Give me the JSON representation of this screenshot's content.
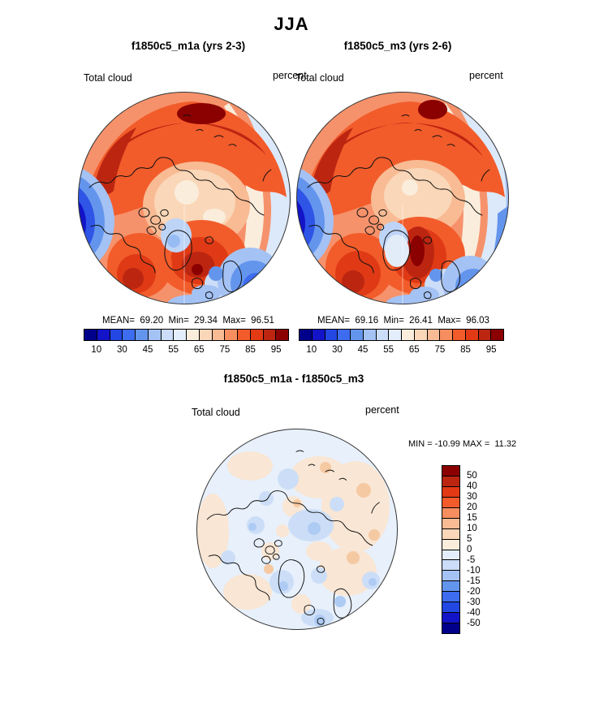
{
  "page": {
    "background": "#FFFFFF",
    "season_title": "JJA"
  },
  "panels": {
    "left": {
      "subtitle": "f1850c5_m1a (yrs 2-3)",
      "variable_label": "Total cloud",
      "units_label": "percent",
      "stats": "MEAN=  69.20  Min=  29.34  Max=  96.51"
    },
    "right": {
      "subtitle": "f1850c5_m3 (yrs 2-6)",
      "variable_label": "Total cloud",
      "units_label": "percent",
      "stats": "MEAN=  69.16  Min=  26.41  Max=  96.03"
    },
    "diff": {
      "title": "f1850c5_m1a - f1850c5_m3",
      "variable_label": "Total cloud",
      "units_label": "percent",
      "minmax": "MIN = -10.99 MAX =  11.32"
    }
  },
  "top_colorbar": {
    "tick_labels": [
      "10",
      "30",
      "45",
      "55",
      "65",
      "75",
      "85",
      "95"
    ]
  },
  "diff_colorbar": {
    "tick_labels": [
      "50",
      "40",
      "30",
      "20",
      "15",
      "10",
      "5",
      "0",
      "-5",
      "-10",
      "-15",
      "-20",
      "-30",
      "-40",
      "-50"
    ]
  },
  "palette": {
    "percent_colors": [
      "#00008B",
      "#1313C8",
      "#2247E2",
      "#3E6CEF",
      "#6495ED",
      "#A4C2F4",
      "#CBDDF8",
      "#E4EEFB",
      "#FAEDDC",
      "#FAD7B8",
      "#F8BB94",
      "#F68E60",
      "#F35B2B",
      "#E23A14",
      "#BC2611",
      "#8B0000"
    ],
    "diff_colors": [
      "#8B0000",
      "#BC2611",
      "#E23A14",
      "#F35B2B",
      "#F68E60",
      "#F8BB94",
      "#FAD7B8",
      "#FAEDDC",
      "#E4EEFB",
      "#CBDDF8",
      "#A4C2F4",
      "#6495ED",
      "#3E6CEF",
      "#2247E2",
      "#1313C8",
      "#00008B"
    ]
  },
  "chart_data": [
    {
      "type": "heatmap",
      "subtype": "north-polar-stereographic-contour-map",
      "season": "JJA",
      "title": "f1850c5_m1a (yrs 2-3)",
      "variable": "Total cloud",
      "units": "percent",
      "stats": {
        "mean": 69.2,
        "min": 29.34,
        "max": 96.51
      },
      "contour_levels": [
        10,
        20,
        30,
        40,
        45,
        50,
        55,
        60,
        65,
        70,
        75,
        80,
        85,
        90,
        95
      ],
      "labeled_levels": [
        10,
        30,
        45,
        55,
        65,
        75,
        85,
        95
      ],
      "colorbar_orientation": "horizontal",
      "palette_low_to_high": [
        "#00008B",
        "#1313C8",
        "#2247E2",
        "#3E6CEF",
        "#6495ED",
        "#A4C2F4",
        "#CBDDF8",
        "#E4EEFB",
        "#FAEDDC",
        "#FAD7B8",
        "#F8BB94",
        "#F68E60",
        "#F35B2B",
        "#E23A14",
        "#BC2611",
        "#8B0000"
      ]
    },
    {
      "type": "heatmap",
      "subtype": "north-polar-stereographic-contour-map",
      "season": "JJA",
      "title": "f1850c5_m3 (yrs 2-6)",
      "variable": "Total cloud",
      "units": "percent",
      "stats": {
        "mean": 69.16,
        "min": 26.41,
        "max": 96.03
      },
      "contour_levels": [
        10,
        20,
        30,
        40,
        45,
        50,
        55,
        60,
        65,
        70,
        75,
        80,
        85,
        90,
        95
      ],
      "labeled_levels": [
        10,
        30,
        45,
        55,
        65,
        75,
        85,
        95
      ],
      "colorbar_orientation": "horizontal",
      "palette_low_to_high": [
        "#00008B",
        "#1313C8",
        "#2247E2",
        "#3E6CEF",
        "#6495ED",
        "#A4C2F4",
        "#CBDDF8",
        "#E4EEFB",
        "#FAEDDC",
        "#FAD7B8",
        "#F8BB94",
        "#F68E60",
        "#F35B2B",
        "#E23A14",
        "#BC2611",
        "#8B0000"
      ]
    },
    {
      "type": "heatmap",
      "subtype": "north-polar-stereographic-contour-map",
      "season": "JJA",
      "title": "f1850c5_m1a - f1850c5_m3",
      "variable": "Total cloud",
      "units": "percent",
      "stats": {
        "min": -10.99,
        "max": 11.32
      },
      "contour_levels": [
        -50,
        -40,
        -30,
        -20,
        -15,
        -10,
        -5,
        0,
        5,
        10,
        15,
        20,
        30,
        40,
        50
      ],
      "labeled_levels": [
        50,
        40,
        30,
        20,
        15,
        10,
        5,
        0,
        -5,
        -10,
        -15,
        -20,
        -30,
        -40,
        -50
      ],
      "colorbar_orientation": "vertical"
    }
  ]
}
